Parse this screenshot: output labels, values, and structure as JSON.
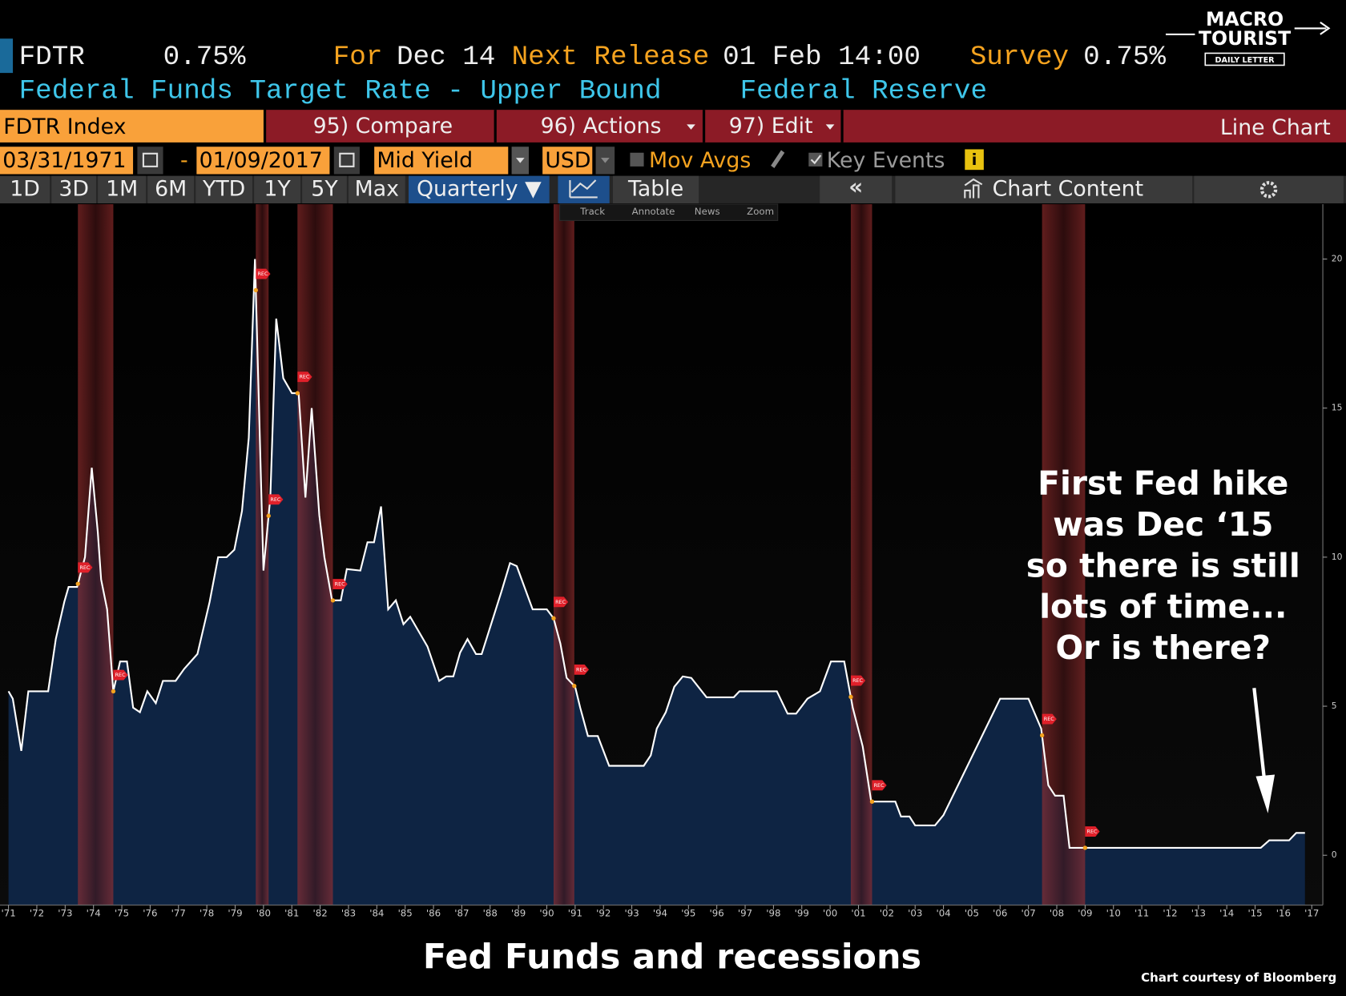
{
  "header": {
    "ticker": "FDTR",
    "value": "0.75%",
    "for_label": "For",
    "for_date": "Dec 14",
    "next_release_label": "Next Release",
    "next_release": "01 Feb 14:00",
    "survey_label": "Survey",
    "survey_value": "0.75%",
    "description": "Federal Funds Target Rate - Upper Bound",
    "source": "Federal Reserve"
  },
  "logo": {
    "line1": "MACRO",
    "line2": "TOURIST",
    "tagline": "DAILY LETTER"
  },
  "toolbar": {
    "security": "FDTR Index",
    "compare": "95) Compare",
    "actions": "96) Actions",
    "edit": "97) Edit",
    "chart_type": "Line Chart"
  },
  "controls": {
    "start_date": "03/31/1971",
    "separator": "-",
    "end_date": "01/09/2017",
    "field": "Mid Yield",
    "currency": "USD",
    "mov_avgs": "Mov Avgs",
    "key_events": "Key Events"
  },
  "periods": [
    "1D",
    "3D",
    "1M",
    "6M",
    "YTD",
    "1Y",
    "5Y",
    "Max"
  ],
  "frequency": "Quarterly ▼",
  "table": "Table",
  "chart_content": "Chart Content",
  "chart_tools": [
    "Track",
    "Annotate",
    "News",
    "Zoom"
  ],
  "chart_data": {
    "type": "area",
    "annotation": [
      "First Fed hike",
      "was Dec ‘15",
      "so there is still",
      "lots of time...",
      "Or is there?"
    ],
    "x": [
      1971.0,
      1971.15,
      1971.45,
      1971.7,
      1972.4,
      1972.67,
      1972.97,
      1973.12,
      1973.42,
      1973.7,
      1973.94,
      1974.15,
      1974.27,
      1974.48,
      1974.7,
      1974.94,
      1975.18,
      1975.4,
      1975.64,
      1975.9,
      1976.2,
      1976.45,
      1976.9,
      1977.2,
      1977.67,
      1978.1,
      1978.4,
      1978.7,
      1978.97,
      1979.24,
      1979.48,
      1979.7,
      1980.0,
      1980.24,
      1980.45,
      1980.7,
      1981.0,
      1981.24,
      1981.48,
      1981.7,
      1981.97,
      1982.15,
      1982.42,
      1982.73,
      1982.94,
      1983.42,
      1983.67,
      1983.9,
      1984.15,
      1984.4,
      1984.67,
      1984.94,
      1985.18,
      1985.79,
      1986.2,
      1986.45,
      1986.7,
      1986.94,
      1987.2,
      1987.5,
      1987.7,
      1988.2,
      1988.4,
      1988.7,
      1988.94,
      1989.5,
      1990.0,
      1990.24,
      1990.48,
      1990.7,
      1991.0,
      1991.18,
      1991.45,
      1991.8,
      1992.2,
      1993.42,
      1993.67,
      1993.88,
      1994.2,
      1994.5,
      1994.8,
      1995.1,
      1995.64,
      1996.6,
      1996.8,
      1998.12,
      1998.5,
      1998.8,
      1999.2,
      1999.64,
      2000.03,
      2000.5,
      2000.8,
      2001.15,
      2001.45,
      2002.3,
      2002.5,
      2002.8,
      2003.0,
      2003.7,
      2004.0,
      2006.0,
      2007.0,
      2007.45,
      2007.7,
      2007.94,
      2008.24,
      2008.45,
      2015.2,
      2015.5,
      2016.2,
      2016.45,
      2016.76
    ],
    "values": [
      5.5,
      5.25,
      3.5,
      5.5,
      5.5,
      7.25,
      8.5,
      9.0,
      9.0,
      10.0,
      13.0,
      10.85,
      9.25,
      8.25,
      5.5,
      6.5,
      6.5,
      4.95,
      4.8,
      5.5,
      5.1,
      5.85,
      5.85,
      6.25,
      6.75,
      8.5,
      10.0,
      10.0,
      10.25,
      11.55,
      14.0,
      20.0,
      9.55,
      12.0,
      18.0,
      16.0,
      15.5,
      15.5,
      12.0,
      15.0,
      11.4,
      10.0,
      8.55,
      8.55,
      9.6,
      9.55,
      10.5,
      10.5,
      11.7,
      8.25,
      8.55,
      7.75,
      8.0,
      7.0,
      5.85,
      6.0,
      6.0,
      6.8,
      7.25,
      6.75,
      6.75,
      8.25,
      8.85,
      9.8,
      9.7,
      8.25,
      8.25,
      7.95,
      7.1,
      5.95,
      5.65,
      4.95,
      4.0,
      4.0,
      3.0,
      3.0,
      3.35,
      4.25,
      4.8,
      5.65,
      6.0,
      5.95,
      5.3,
      5.3,
      5.5,
      5.5,
      4.75,
      4.75,
      5.25,
      5.5,
      6.5,
      6.5,
      4.95,
      3.65,
      1.8,
      1.8,
      1.3,
      1.3,
      1.0,
      1.0,
      1.35,
      5.25,
      5.25,
      4.25,
      2.35,
      2.0,
      2.0,
      0.25,
      0.25,
      0.5,
      0.5,
      0.75,
      0.75
    ],
    "color": "#ffffff",
    "fill_color": "#0e2443",
    "recessions": [
      [
        1973.45,
        1974.7
      ],
      [
        1979.73,
        1980.18
      ],
      [
        1981.2,
        1982.45
      ],
      [
        1990.24,
        1990.97
      ],
      [
        2000.73,
        2001.48
      ],
      [
        2007.48,
        2009.0
      ]
    ],
    "recession_color": "#7a1f22",
    "recession_label": "REC",
    "xlim": [
      1970.7,
      2017.39
    ],
    "ylim": [
      -1.67,
      21.84
    ],
    "yticks": [
      0,
      5,
      10,
      15,
      20
    ],
    "y_axis_side": "right",
    "xticks": [
      {
        "value": 1971,
        "label": "'71"
      },
      {
        "value": 1972,
        "label": "'72"
      },
      {
        "value": 1973,
        "label": "'73"
      },
      {
        "value": 1974,
        "label": "'74"
      },
      {
        "value": 1975,
        "label": "'75"
      },
      {
        "value": 1976,
        "label": "'76"
      },
      {
        "value": 1977,
        "label": "'77"
      },
      {
        "value": 1978,
        "label": "'78"
      },
      {
        "value": 1979,
        "label": "'79"
      },
      {
        "value": 1980,
        "label": "'80"
      },
      {
        "value": 1981,
        "label": "'81"
      },
      {
        "value": 1982,
        "label": "'82"
      },
      {
        "value": 1983,
        "label": "'83"
      },
      {
        "value": 1984,
        "label": "'84"
      },
      {
        "value": 1985,
        "label": "'85"
      },
      {
        "value": 1986,
        "label": "'86"
      },
      {
        "value": 1987,
        "label": "'87"
      },
      {
        "value": 1988,
        "label": "'88"
      },
      {
        "value": 1989,
        "label": "'89"
      },
      {
        "value": 1990,
        "label": "'90"
      },
      {
        "value": 1991,
        "label": "'91"
      },
      {
        "value": 1992,
        "label": "'92"
      },
      {
        "value": 1993,
        "label": "'93"
      },
      {
        "value": 1994,
        "label": "'94"
      },
      {
        "value": 1995,
        "label": "'95"
      },
      {
        "value": 1996,
        "label": "'96"
      },
      {
        "value": 1997,
        "label": "'97"
      },
      {
        "value": 1998,
        "label": "'98"
      },
      {
        "value": 1999,
        "label": "'99"
      },
      {
        "value": 2000,
        "label": "'00"
      },
      {
        "value": 2001,
        "label": "'01"
      },
      {
        "value": 2002,
        "label": "'02"
      },
      {
        "value": 2003,
        "label": "'03"
      },
      {
        "value": 2004,
        "label": "'04"
      },
      {
        "value": 2005,
        "label": "'05"
      },
      {
        "value": 2006,
        "label": "'06"
      },
      {
        "value": 2007,
        "label": "'07"
      },
      {
        "value": 2008,
        "label": "'08"
      },
      {
        "value": 2009,
        "label": "'09"
      },
      {
        "value": 2010,
        "label": "'10"
      },
      {
        "value": 2011,
        "label": "'11"
      },
      {
        "value": 2012,
        "label": "'12"
      },
      {
        "value": 2013,
        "label": "'13"
      },
      {
        "value": 2014,
        "label": "'14"
      },
      {
        "value": 2015,
        "label": "'15"
      },
      {
        "value": 2016,
        "label": "'16"
      },
      {
        "value": 2017,
        "label": "'17"
      }
    ]
  },
  "caption": "Fed Funds and recessions",
  "credit": "Chart courtesy of Bloomberg"
}
